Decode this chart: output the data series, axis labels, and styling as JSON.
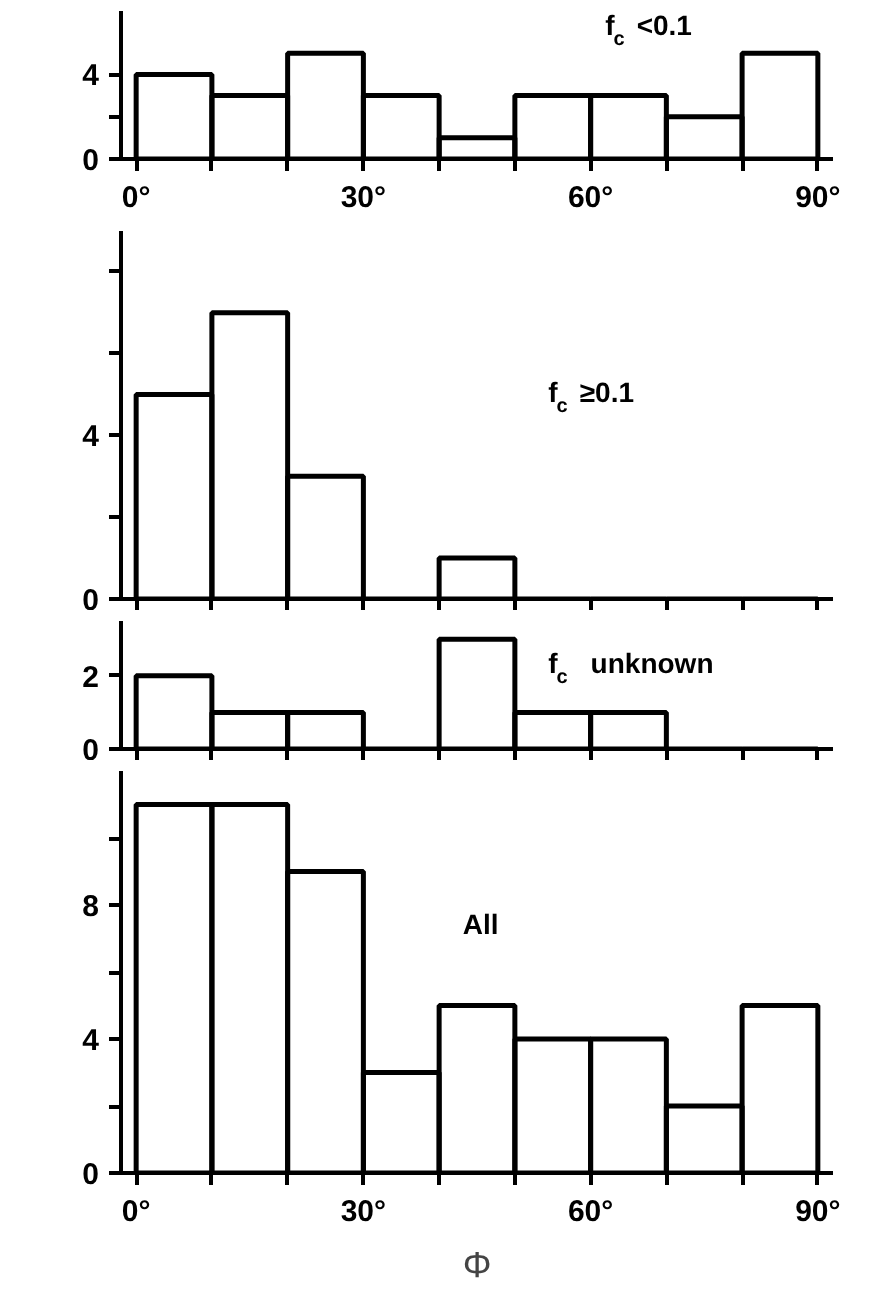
{
  "chart_data": [
    {
      "type": "histogram",
      "title": "f$_{c}$ <0.1",
      "bins": [
        0,
        10,
        20,
        30,
        40,
        50,
        60,
        70,
        80,
        90
      ],
      "values": [
        4,
        3,
        5,
        3,
        1,
        3,
        3,
        2,
        5
      ],
      "color": "#000000",
      "xlim": [
        -2,
        92
      ],
      "ylim": [
        0,
        7
      ],
      "xticks": [
        {
          "value": 0,
          "label": "0°"
        },
        {
          "value": 10,
          "label": null
        },
        {
          "value": 20,
          "label": null
        },
        {
          "value": 30,
          "label": "30°"
        },
        {
          "value": 40,
          "label": null
        },
        {
          "value": 50,
          "label": null
        },
        {
          "value": 60,
          "label": "60°"
        },
        {
          "value": 70,
          "label": null
        },
        {
          "value": 80,
          "label": null
        },
        {
          "value": 90,
          "label": "90°"
        }
      ],
      "yticks": [
        0,
        {
          "value": 2,
          "label": null
        },
        4
      ],
      "grid": false
    },
    {
      "type": "histogram",
      "title": "f$_{c}$ ≥0.1",
      "bins": [
        0,
        10,
        20,
        30,
        40,
        50,
        60,
        70,
        80,
        90
      ],
      "values": [
        5,
        7,
        3,
        0,
        1,
        0,
        0,
        0,
        0
      ],
      "color": "#000000",
      "xlim": [
        -2,
        92
      ],
      "ylim": [
        0,
        9
      ],
      "xticks": [
        {
          "value": 0,
          "label": null
        },
        {
          "value": 10,
          "label": null
        },
        {
          "value": 20,
          "label": null
        },
        {
          "value": 30,
          "label": null
        },
        {
          "value": 40,
          "label": null
        },
        {
          "value": 50,
          "label": null
        },
        {
          "value": 60,
          "label": null
        },
        {
          "value": 70,
          "label": null
        },
        {
          "value": 80,
          "label": null
        },
        {
          "value": 90,
          "label": null
        }
      ],
      "yticks": [
        0,
        {
          "value": 2,
          "label": null
        },
        4,
        {
          "value": 6,
          "label": null
        },
        {
          "value": 8,
          "label": null
        }
      ],
      "tick_labels": "y",
      "grid": false
    },
    {
      "type": "histogram",
      "title": "f$_{c}$  unknown",
      "bins": [
        0,
        10,
        20,
        30,
        40,
        50,
        60,
        70,
        80,
        90
      ],
      "values": [
        2,
        1,
        1,
        0,
        3,
        1,
        1,
        0,
        0
      ],
      "color": "#000000",
      "xlim": [
        -2,
        92
      ],
      "ylim": [
        0,
        3.5
      ],
      "xticks": [
        {
          "value": 0,
          "label": null
        },
        {
          "value": 10,
          "label": null
        },
        {
          "value": 20,
          "label": null
        },
        {
          "value": 30,
          "label": null
        },
        {
          "value": 40,
          "label": null
        },
        {
          "value": 50,
          "label": null
        },
        {
          "value": 60,
          "label": null
        },
        {
          "value": 70,
          "label": null
        },
        {
          "value": 80,
          "label": null
        },
        {
          "value": 90,
          "label": null
        }
      ],
      "yticks": [
        0,
        2
      ],
      "tick_labels": "y",
      "grid": false
    },
    {
      "type": "histogram",
      "title": "All",
      "xlabel": "Φ",
      "bins": [
        0,
        10,
        20,
        30,
        40,
        50,
        60,
        70,
        80,
        90
      ],
      "values": [
        11,
        11,
        9,
        3,
        5,
        4,
        4,
        2,
        5
      ],
      "color": "#000000",
      "xlim": [
        -2,
        92
      ],
      "ylim": [
        0,
        12
      ],
      "xticks": [
        {
          "value": 0,
          "label": "0°"
        },
        {
          "value": 10,
          "label": null
        },
        {
          "value": 20,
          "label": null
        },
        {
          "value": 30,
          "label": "30°"
        },
        {
          "value": 40,
          "label": null
        },
        {
          "value": 50,
          "label": null
        },
        {
          "value": 60,
          "label": "60°"
        },
        {
          "value": 70,
          "label": null
        },
        {
          "value": 80,
          "label": null
        },
        {
          "value": 90,
          "label": "90°"
        }
      ],
      "yticks": [
        0,
        {
          "value": 2,
          "label": null
        },
        4,
        {
          "value": 6,
          "label": null
        },
        8,
        {
          "value": 10,
          "label": null
        }
      ],
      "grid": false
    }
  ]
}
